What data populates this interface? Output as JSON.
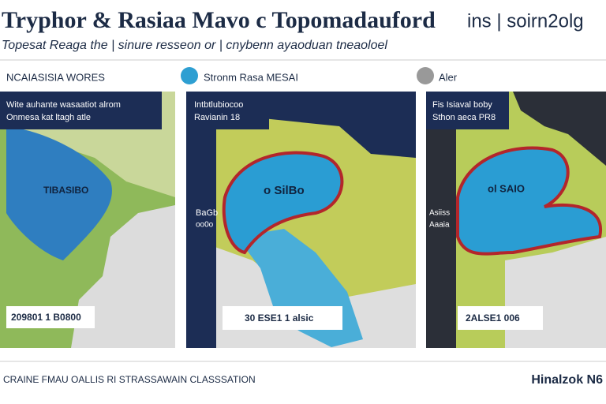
{
  "header": {
    "title": "Tryphor & Rasiaa  Mavo c Topomadauford",
    "title_right": "ins | soirn2olg",
    "subtitle": "Topesat Reaga the | sinure resseon or | cnybenn ayaoduan tneaoloel"
  },
  "legend": [
    "NCAIASISIA WORES",
    "Stronm Rasa MESAI",
    "Aler"
  ],
  "panels": [
    {
      "caption": [
        "Wite auhante wasaatiot alrom",
        "Onmesa kat ltagh atle"
      ],
      "map_label": "TIBASIBO",
      "bottom_label": "209801 1 B0800"
    },
    {
      "caption": [
        "Intbtlubiocoo",
        "Ravianin 18"
      ],
      "map_label": "o SilBo",
      "side_label": [
        "BaGb",
        "oo0o"
      ],
      "bottom_label": "30 ESE1 1 alsic"
    },
    {
      "caption": [
        "Fis Isiaval boby",
        "Sthon aeca PR8"
      ],
      "map_label": "ol SAIO",
      "side_label": [
        "Asiiss",
        "Aaaia"
      ],
      "bottom_label": "2ALSE1 006"
    }
  ],
  "footer": {
    "left": "CRAINE FMAU OALLIS RI STRASSAWAIN CLASSSATION",
    "right": "Hinalzok N6"
  }
}
